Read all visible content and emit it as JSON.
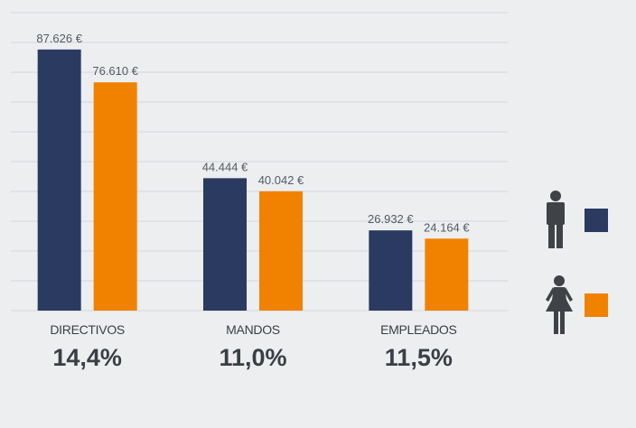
{
  "chart_data": {
    "type": "bar",
    "categories": [
      "DIRECTIVOS",
      "MANDOS",
      "EMPLEADOS"
    ],
    "series": [
      {
        "values": [
          87626,
          44444,
          26932
        ],
        "labels": [
          "87.626 €",
          "44.444 €",
          "26.932 €"
        ],
        "color": "#2b3a61",
        "icon": "man-icon"
      },
      {
        "values": [
          76610,
          40042,
          24164
        ],
        "labels": [
          "76.610 €",
          "40.042 €",
          "24.164 €"
        ],
        "color": "#f08200",
        "icon": "woman-icon"
      }
    ],
    "gaps": [
      "14,4%",
      "11,0%",
      "11,5%"
    ],
    "ylim": [
      0,
      100000
    ],
    "grid": true,
    "legend": "right",
    "title": "",
    "xlabel": "",
    "ylabel": ""
  },
  "colors": {
    "background": "#eceef0",
    "gridline": "#d4d7db",
    "icon": "#3f4246"
  }
}
